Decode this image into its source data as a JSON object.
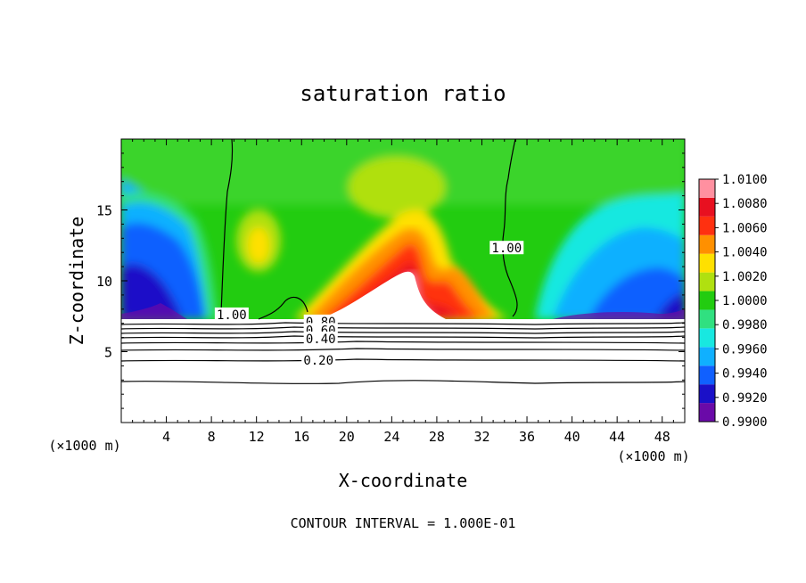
{
  "chart_data": {
    "type": "heatmap",
    "title": "saturation ratio",
    "xlabel": "X-coordinate",
    "ylabel": "Z-coordinate",
    "x_unit": "(×1000 m)",
    "x_unit_right": "(×1000 m)",
    "xlim": [
      0,
      50
    ],
    "ylim": [
      0,
      20
    ],
    "x_ticks": [
      "4",
      "8",
      "12",
      "16",
      "20",
      "24",
      "28",
      "32",
      "36",
      "40",
      "44",
      "48"
    ],
    "y_ticks": [
      "5",
      "10",
      "15"
    ],
    "colorbar": {
      "min": 0.99,
      "max": 1.01,
      "labels": [
        "1.0100",
        "1.0080",
        "1.0060",
        "1.0040",
        "1.0020",
        "1.0000",
        "0.9980",
        "0.9960",
        "0.9940",
        "0.9920",
        "0.9900"
      ],
      "colors": [
        "#6a0aa8",
        "#1a10c8",
        "#1060ff",
        "#10b0ff",
        "#18e8e0",
        "#30e080",
        "#22cc10",
        "#b0e010",
        "#ffe000",
        "#ff9000",
        "#ff3010",
        "#e81020",
        "#ff90a0"
      ]
    },
    "contour_labels": [
      {
        "text": "1.00",
        "x": 9.8,
        "z": 7.3
      },
      {
        "text": "1.00",
        "x": 34.2,
        "z": 12.0
      },
      {
        "text": "0.80",
        "x": 17.7,
        "z": 6.8
      },
      {
        "text": "0.60",
        "x": 17.7,
        "z": 6.2
      },
      {
        "text": "0.40",
        "x": 17.7,
        "z": 5.6
      },
      {
        "text": "0.20",
        "x": 17.5,
        "z": 4.1
      }
    ],
    "footer": "CONTOUR INTERVAL = 1.000E-01"
  }
}
